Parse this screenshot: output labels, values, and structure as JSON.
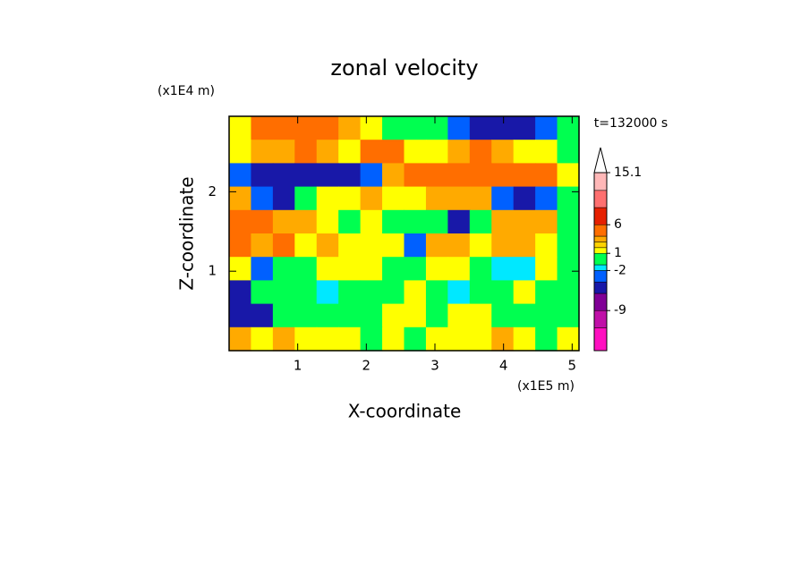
{
  "chart_data": {
    "type": "contour",
    "title": "zonal velocity",
    "x_label": "X-coordinate",
    "y_label": "Z-coordinate",
    "x_unit": "(x1E5 m)",
    "y_unit": "(x1E4 m)",
    "time_label": "t=132000 s",
    "xlim": [
      0,
      5.1
    ],
    "xticks": [
      1,
      2,
      3,
      4,
      5
    ],
    "ylim": [
      0,
      2.95
    ],
    "yticks": [
      1,
      2
    ],
    "values": [
      [
        1.5,
        5,
        5,
        5,
        5,
        3.5,
        1.5,
        0.5,
        0.5,
        0.5,
        -3,
        -5,
        -5,
        -5,
        -3,
        0.5
      ],
      [
        1.5,
        3.5,
        3.5,
        5,
        3.5,
        1.5,
        5,
        5,
        1.5,
        1.5,
        3.5,
        5,
        3.5,
        1.5,
        1.5,
        0.5
      ],
      [
        -3,
        -5,
        -5,
        -5,
        -5,
        -5,
        -3,
        3.5,
        5,
        5,
        5,
        5,
        5,
        5,
        5,
        1.5
      ],
      [
        3.5,
        -3,
        -5,
        0.5,
        1.5,
        1.5,
        3.5,
        1.5,
        1.5,
        3.5,
        3.5,
        3.5,
        -3,
        -5,
        -3,
        0.5
      ],
      [
        5,
        5,
        3.5,
        3.5,
        1.5,
        0.5,
        1.5,
        0.5,
        0.5,
        0.5,
        -5,
        0.5,
        3.5,
        3.5,
        3.5,
        0.5
      ],
      [
        5,
        3.5,
        5,
        1.5,
        3.5,
        1.5,
        1.5,
        1.5,
        -3,
        3.5,
        3.5,
        1.5,
        3.5,
        3.5,
        1.5,
        0.5
      ],
      [
        1.5,
        -3,
        0.5,
        0.5,
        1.5,
        1.5,
        1.5,
        0.5,
        0.5,
        1.5,
        1.5,
        0.5,
        -1.5,
        -1.5,
        1.5,
        0.5
      ],
      [
        -5,
        0.5,
        0.5,
        0.5,
        -1.5,
        0.5,
        0.5,
        0.5,
        1.5,
        0.5,
        -1.5,
        0.5,
        0.5,
        1.5,
        0.5,
        0.5
      ],
      [
        -5,
        -5,
        0.5,
        0.5,
        0.5,
        0.5,
        0.5,
        1.5,
        1.5,
        0.5,
        1.5,
        1.5,
        0.5,
        0.5,
        0.5,
        0.5
      ],
      [
        3.5,
        1.5,
        3.5,
        1.5,
        1.5,
        1.5,
        0.5,
        1.5,
        0.5,
        1.5,
        1.5,
        1.5,
        3.5,
        1.5,
        0.5,
        1.5
      ]
    ],
    "levels": [
      -16,
      -12,
      -9,
      -6,
      -4,
      -2,
      -1,
      1,
      2,
      3,
      4,
      6,
      9,
      12,
      15.1
    ],
    "colors": [
      "#ff10c0",
      "#c010a8",
      "#800096",
      "#1818a8",
      "#0060ff",
      "#00e8ff",
      "#00ff50",
      "#ffff00",
      "#ffd200",
      "#ffaa00",
      "#ff6e00",
      "#e62000",
      "#ff7070",
      "#ffb8b8"
    ],
    "cbar_ticks": [
      15.1,
      6,
      1,
      -2,
      -9
    ]
  }
}
